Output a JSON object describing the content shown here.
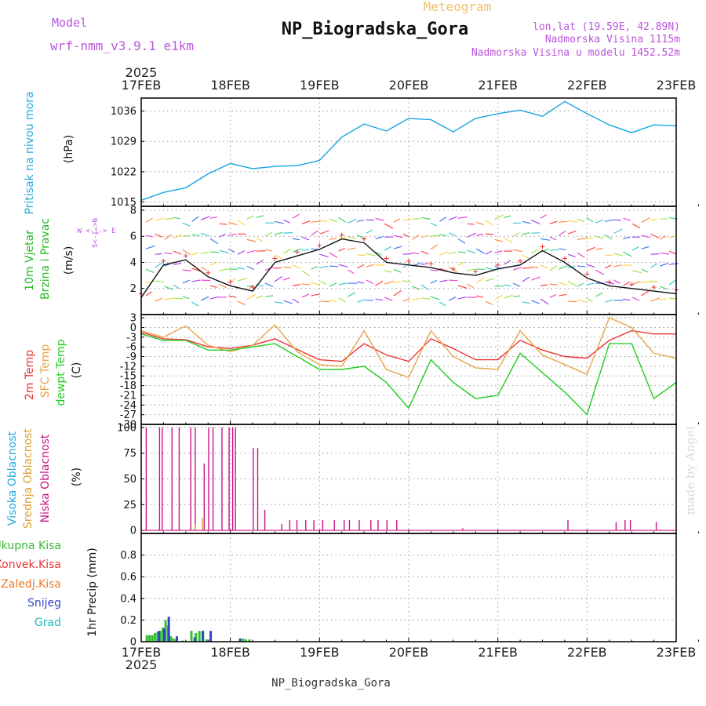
{
  "header": {
    "model_label": "Model",
    "model_name": "wrf-nmm_v3.9.1 e1km",
    "product": "Meteogram",
    "station": "NP_Biogradska_Gora",
    "lonlat": "lon,lat (19.59E, 42.89N)",
    "elevation": "Nadmorska Visina 1115m",
    "model_elevation": "Nadmorska Visina u modelu 1452.52m",
    "year": "2025",
    "footer_station": "NP_Biogradska_Gora",
    "credit": "made by Angel"
  },
  "colors": {
    "pressure": "#1aa3e6",
    "temp2m": "#ee3333",
    "sfc_temp": "#e6a54a",
    "dewpt": "#22cc22",
    "niska": "#cc1188",
    "srednja": "#e0a030",
    "visoka": "#22aadd",
    "ukupna": "#33bb33",
    "konvek": "#ee3333",
    "zaledj": "#ee7722",
    "snijeg": "#3344cc",
    "grad": "#22bbbb"
  },
  "chart_data": [
    {
      "type": "line",
      "panel": "pressure",
      "labels": [
        "Pritisak na nivou mora",
        "(hPa)"
      ],
      "x_ticks": [
        "17FEB",
        "18FEB",
        "19FEB",
        "20FEB",
        "21FEB",
        "22FEB",
        "23FEB"
      ],
      "yticks": [
        1015,
        1022,
        1029,
        1036
      ],
      "ylim": [
        1014,
        1039
      ],
      "series": [
        {
          "x": [
            0,
            0.25,
            0.5,
            0.75,
            1,
            1.25,
            1.5,
            1.75,
            2,
            2.25,
            2.5,
            2.75,
            3,
            3.25,
            3.5,
            3.75,
            4,
            4.25,
            4.5,
            4.75,
            5,
            5.25,
            5.5,
            5.75,
            6
          ],
          "values": [
            1015.4,
            1017.2,
            1018.3,
            1021.5,
            1023.9,
            1022.7,
            1023.2,
            1023.4,
            1024.6,
            1030.0,
            1033.0,
            1031.4,
            1034.3,
            1034.0,
            1031.2,
            1034.3,
            1035.4,
            1036.2,
            1034.8,
            1038.2,
            1035.4,
            1032.8,
            1031.0,
            1032.8,
            1032.6
          ]
        }
      ]
    },
    {
      "type": "line",
      "panel": "wind",
      "labels": [
        "10m Vjetar",
        "Brzina i Pravac",
        "(m/s)"
      ],
      "compass": "W <-|-> E",
      "compass_ns": "S<-|->N",
      "yticks": [
        2,
        4,
        6,
        8
      ],
      "ylim": [
        0,
        8.3
      ],
      "series": [
        {
          "name": "speed",
          "x": [
            0,
            0.25,
            0.5,
            0.75,
            1,
            1.25,
            1.5,
            1.75,
            2,
            2.25,
            2.5,
            2.75,
            3,
            3.25,
            3.5,
            3.75,
            4,
            4.25,
            4.5,
            4.75,
            5,
            5.25,
            5.5,
            5.75,
            6
          ],
          "values": [
            1.3,
            3.8,
            4.2,
            2.9,
            2.2,
            1.8,
            4.0,
            4.5,
            5.0,
            5.8,
            5.5,
            4.0,
            3.8,
            3.6,
            3.2,
            3.0,
            3.5,
            3.8,
            4.9,
            4.0,
            2.8,
            2.2,
            2.0,
            1.8,
            1.6
          ]
        }
      ]
    },
    {
      "type": "line",
      "panel": "temperature",
      "labels": [
        "2m Temp",
        "SFC Temp",
        "dewpt Temp",
        "(C)"
      ],
      "yticks": [
        3,
        0,
        -3,
        -6,
        -9,
        -12,
        -15,
        -18,
        -21,
        -24,
        -27,
        -30
      ],
      "ylim": [
        -30,
        4
      ],
      "series": [
        {
          "name": "2m Temp",
          "x": [
            0,
            0.25,
            0.5,
            0.75,
            1,
            1.25,
            1.5,
            1.75,
            2,
            2.25,
            2.5,
            2.75,
            3,
            3.25,
            3.5,
            3.75,
            4,
            4.25,
            4.5,
            4.75,
            5,
            5.25,
            5.5,
            5.75,
            6
          ],
          "values": [
            -1.5,
            -3.5,
            -3.8,
            -6.0,
            -6.5,
            -5.5,
            -3.5,
            -6.8,
            -10.0,
            -10.5,
            -5.0,
            -8.5,
            -10.5,
            -3.5,
            -6.5,
            -10.0,
            -10.0,
            -4.0,
            -7.0,
            -9.0,
            -9.5,
            -4.0,
            -1.0,
            -2.0,
            -2.0
          ]
        },
        {
          "name": "SFC Temp",
          "x": [
            0,
            0.25,
            0.5,
            0.75,
            1,
            1.25,
            1.5,
            1.75,
            2,
            2.25,
            2.5,
            2.75,
            3,
            3.25,
            3.5,
            3.75,
            4,
            4.25,
            4.5,
            4.75,
            5,
            5.25,
            5.5,
            5.75,
            6
          ],
          "values": [
            -1.0,
            -3.0,
            0.5,
            -5.5,
            -7.5,
            -5.5,
            0.8,
            -7.5,
            -11.5,
            -12.0,
            -1.0,
            -13.0,
            -15.5,
            -1.0,
            -9.0,
            -12.5,
            -13.0,
            -1.0,
            -8.5,
            -11.5,
            -14.5,
            3.0,
            0.0,
            -8.0,
            -9.5
          ]
        },
        {
          "name": "dewpt Temp",
          "x": [
            0,
            0.25,
            0.5,
            0.75,
            1,
            1.25,
            1.5,
            1.75,
            2,
            2.25,
            2.5,
            2.75,
            3,
            3.25,
            3.5,
            3.75,
            4,
            4.25,
            4.5,
            4.75,
            5,
            5.25,
            5.5,
            5.75,
            6
          ],
          "values": [
            -2.0,
            -4.0,
            -4.0,
            -7.0,
            -7.0,
            -6.0,
            -5.0,
            -9.0,
            -13.0,
            -13.0,
            -12.0,
            -17.0,
            -25.0,
            -10.0,
            -17.0,
            -22.0,
            -21.0,
            -8.0,
            -14.0,
            -20.0,
            -27.0,
            -5.0,
            -5.0,
            -22.0,
            -17.0
          ]
        }
      ]
    },
    {
      "type": "bar",
      "panel": "cloud",
      "labels": [
        "Visoka Oblacnost",
        "Srednja Oblacnost",
        "Niska Oblacnost",
        "(%)"
      ],
      "yticks": [
        0,
        25,
        50,
        75,
        100
      ],
      "ylim": [
        -3,
        103
      ],
      "series": [
        {
          "name": "Niska Oblacnost",
          "x": [
            0.05,
            0.2,
            0.23,
            0.34,
            0.42,
            0.55,
            0.6,
            0.7,
            0.75,
            0.8,
            0.9,
            0.98,
            1.02,
            1.05,
            1.25,
            1.3,
            1.38,
            1.57,
            1.66,
            1.74,
            1.84,
            1.93,
            2.03,
            2.16,
            2.27,
            2.33,
            2.44,
            2.57,
            2.65,
            2.75,
            2.86,
            3.6,
            4.78,
            5.32,
            5.42,
            5.48,
            5.77
          ],
          "values": [
            100,
            100,
            100,
            100,
            100,
            100,
            100,
            65,
            100,
            100,
            100,
            100,
            100,
            100,
            80,
            80,
            20,
            6,
            10,
            10,
            10,
            10,
            10,
            10,
            10,
            10,
            10,
            10,
            10,
            10,
            10,
            2,
            10,
            8,
            10,
            10,
            8
          ]
        },
        {
          "name": "Srednja Oblacnost",
          "x": [
            0.6,
            0.68
          ],
          "values": [
            6,
            12
          ]
        }
      ]
    },
    {
      "type": "bar",
      "panel": "precip",
      "labels": [
        "Ukupna Kisa",
        "Konvek.Kisa",
        "Zaledj.Kisa",
        "Snijeg",
        "Grad",
        "1hr Precip (mm)"
      ],
      "yticks": [
        0,
        0.2,
        0.4,
        0.6,
        0.8
      ],
      "ylim": [
        0,
        1.0
      ],
      "series": [
        {
          "name": "Ukupna Kisa",
          "x": [
            0.05,
            0.08,
            0.11,
            0.14,
            0.17,
            0.2,
            0.23,
            0.26,
            0.29,
            0.32,
            0.35,
            0.38,
            0.45,
            0.55,
            0.6,
            0.64,
            0.68,
            0.72,
            0.76,
            1.1,
            1.13,
            1.16,
            1.2
          ],
          "values": [
            0.06,
            0.06,
            0.06,
            0.08,
            0.09,
            0.1,
            0.13,
            0.2,
            0.15,
            0.05,
            0.03,
            0.02,
            0.01,
            0.1,
            0.08,
            0.1,
            0.1,
            0.02,
            0.02,
            0.03,
            0.03,
            0.02,
            0.02
          ]
        },
        {
          "name": "Snijeg",
          "x": [
            0.16,
            0.22,
            0.27,
            0.36,
            0.56,
            0.65,
            0.74,
            1.07
          ],
          "values": [
            0.1,
            0.12,
            0.23,
            0.05,
            0.04,
            0.1,
            0.1,
            0.03
          ]
        }
      ]
    }
  ]
}
